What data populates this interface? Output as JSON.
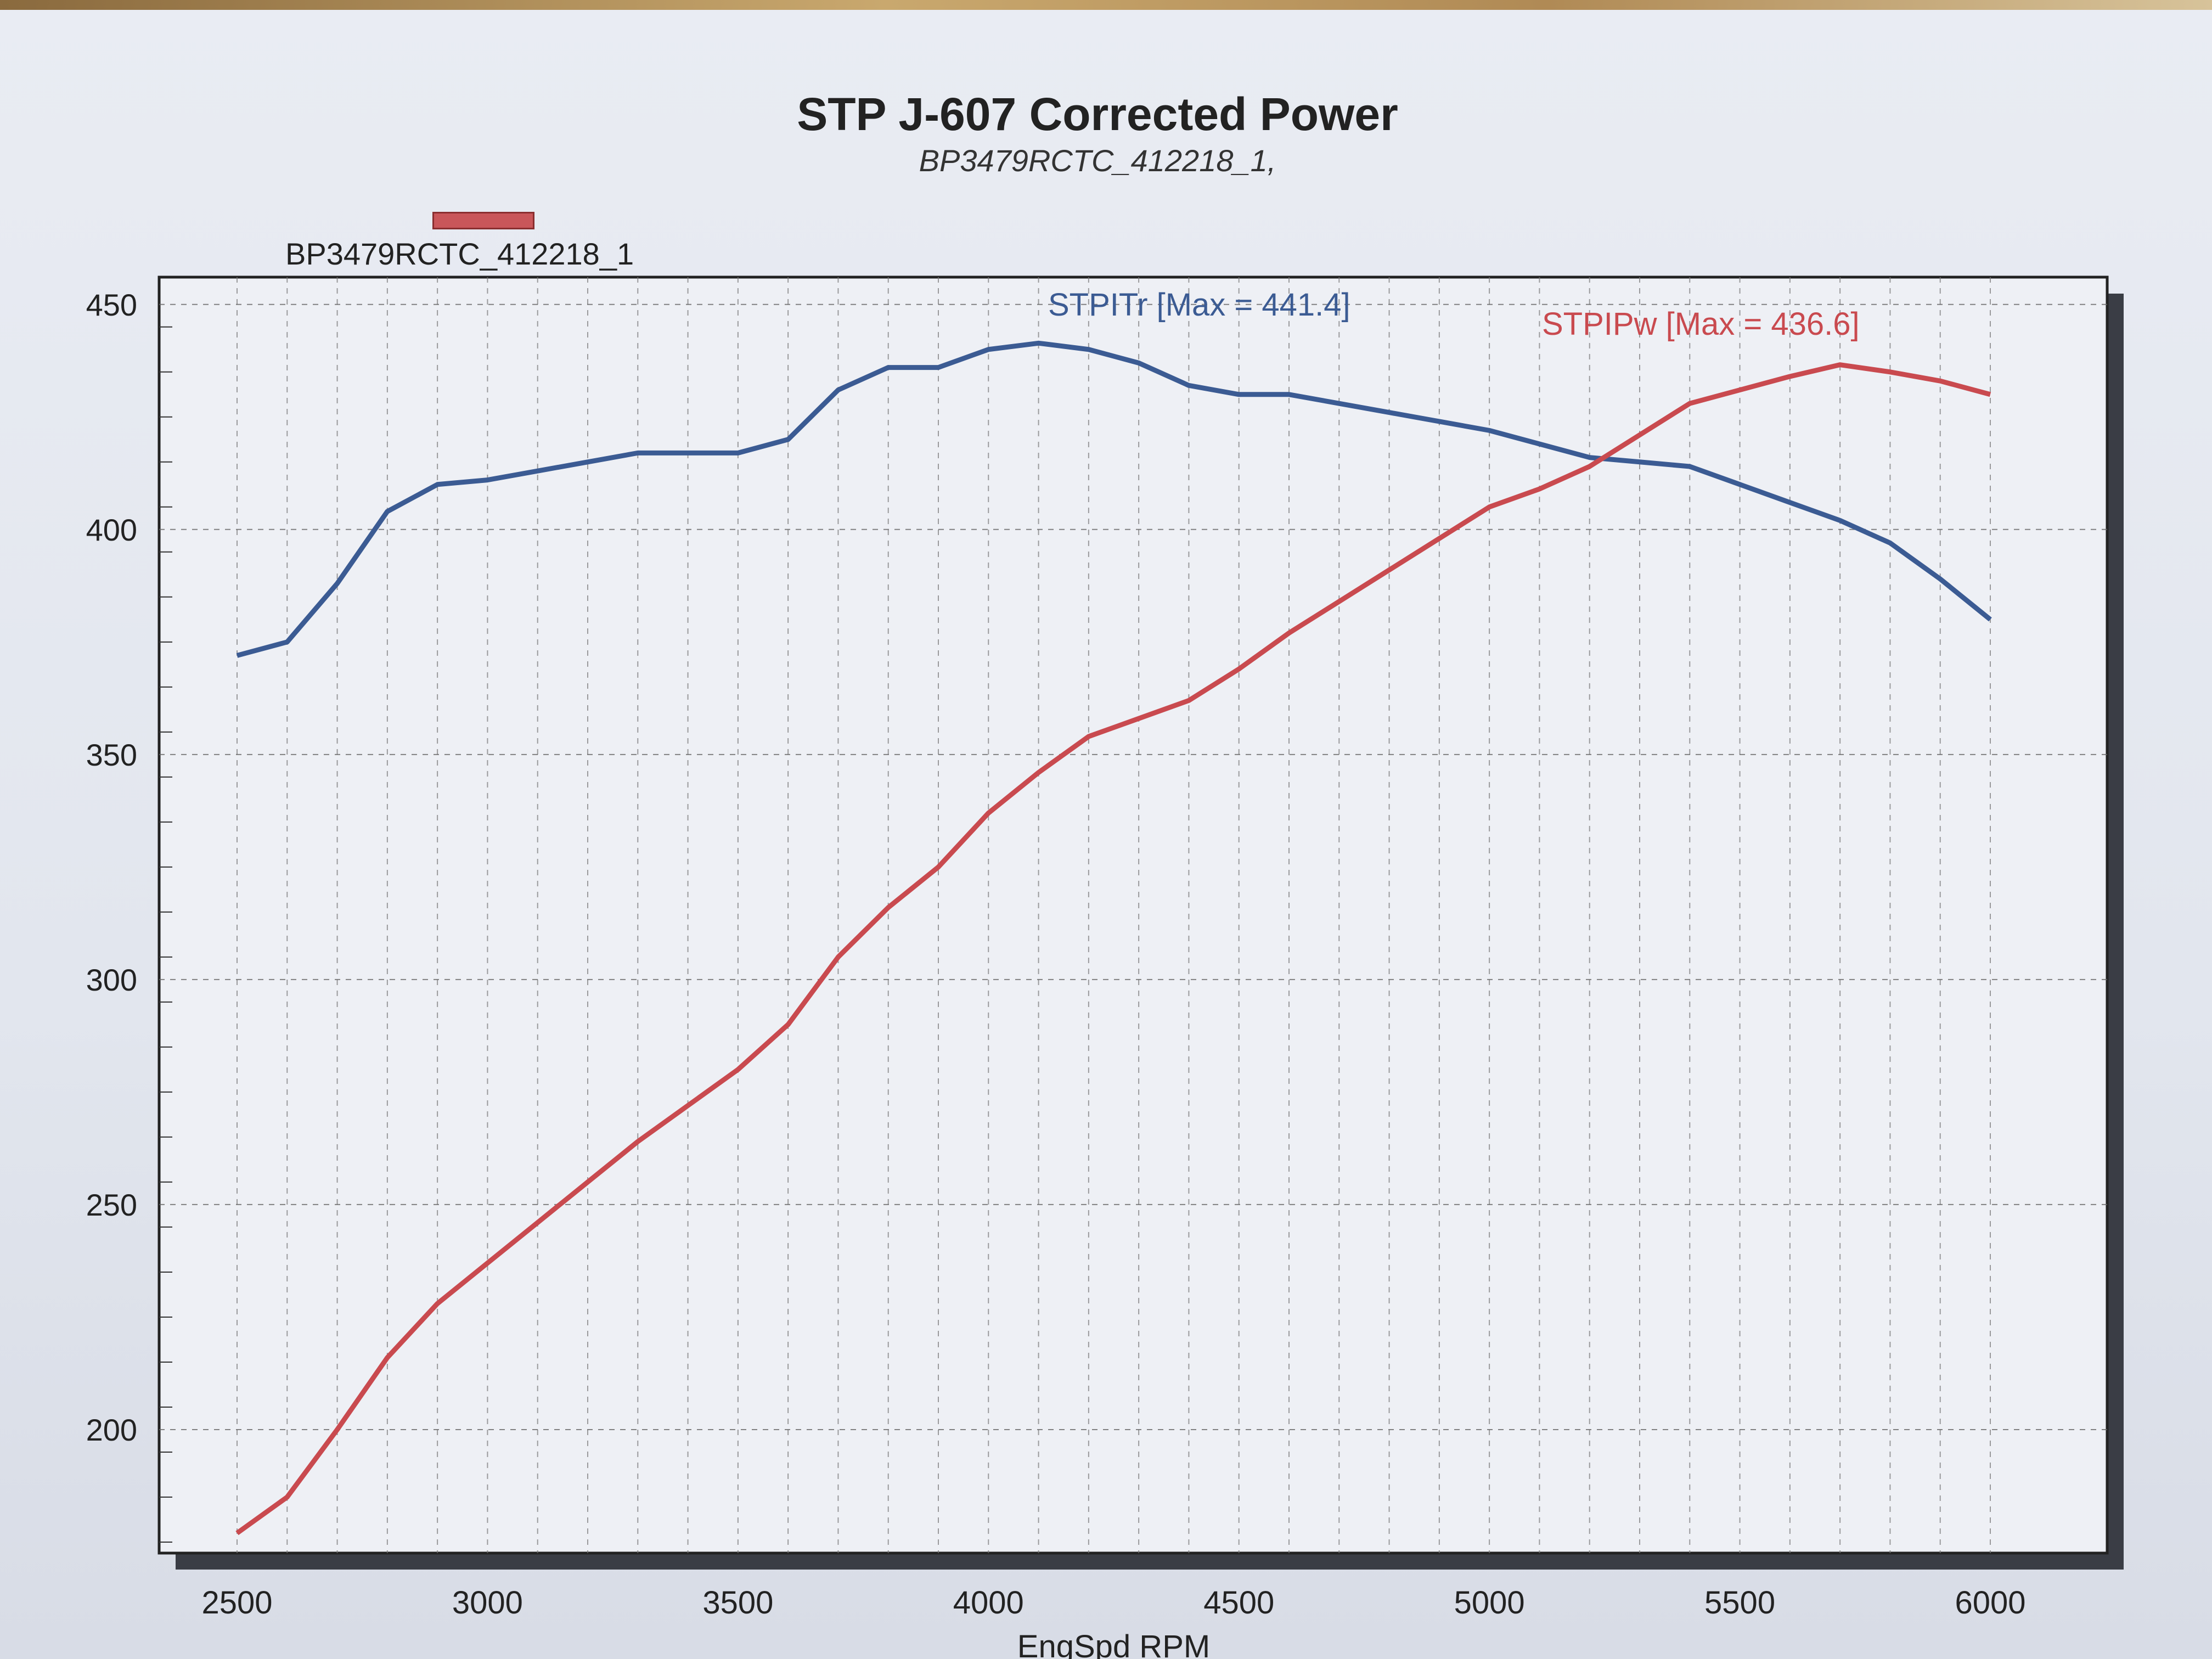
{
  "chart_data": {
    "type": "line",
    "title": "STP J-607 Corrected Power",
    "subtitle": "BP3479RCTC_412218_1,",
    "legend": {
      "label": "BP3479RCTC_412218_1",
      "color": "#c9565a",
      "placement": "top-left"
    },
    "xlabel": "EngSpd RPM",
    "ylabel": "",
    "xlim": [
      2500,
      6000
    ],
    "ylim": [
      175,
      450
    ],
    "x_ticks": [
      2500,
      3000,
      3500,
      4000,
      4500,
      5000,
      5500,
      6000
    ],
    "y_ticks": [
      200,
      250,
      300,
      350,
      400,
      450
    ],
    "grid": true,
    "series": [
      {
        "name": "STPITr",
        "annotation": "STPITr [Max = 441.4]",
        "color": "#3b5b93",
        "x": [
          2500,
          2600,
          2700,
          2800,
          2900,
          3000,
          3100,
          3200,
          3300,
          3400,
          3500,
          3600,
          3700,
          3800,
          3900,
          4000,
          4100,
          4200,
          4300,
          4400,
          4500,
          4600,
          4700,
          4800,
          4900,
          5000,
          5100,
          5200,
          5300,
          5400,
          5500,
          5600,
          5700,
          5800,
          5900,
          6000
        ],
        "values": [
          372,
          375,
          388,
          404,
          410,
          411,
          413,
          415,
          417,
          417,
          417,
          420,
          431,
          436,
          436,
          440,
          441.4,
          440,
          437,
          432,
          430,
          430,
          428,
          426,
          424,
          422,
          419,
          416,
          415,
          414,
          410,
          406,
          402,
          397,
          389,
          380
        ]
      },
      {
        "name": "STPIPw",
        "annotation": "STPIPw [Max = 436.6]",
        "color": "#c94a4f",
        "x": [
          2500,
          2600,
          2700,
          2800,
          2900,
          3000,
          3100,
          3200,
          3300,
          3400,
          3500,
          3600,
          3700,
          3800,
          3900,
          4000,
          4100,
          4200,
          4300,
          4400,
          4500,
          4600,
          4700,
          4800,
          4900,
          5000,
          5100,
          5200,
          5300,
          5400,
          5500,
          5600,
          5700,
          5800,
          5900,
          6000
        ],
        "values": [
          177,
          185,
          200,
          216,
          228,
          237,
          246,
          255,
          264,
          272,
          280,
          290,
          305,
          316,
          325,
          337,
          346,
          354,
          358,
          362,
          369,
          377,
          384,
          391,
          398,
          405,
          409,
          414,
          421,
          428,
          431,
          434,
          436.6,
          435,
          433,
          430
        ]
      }
    ]
  }
}
